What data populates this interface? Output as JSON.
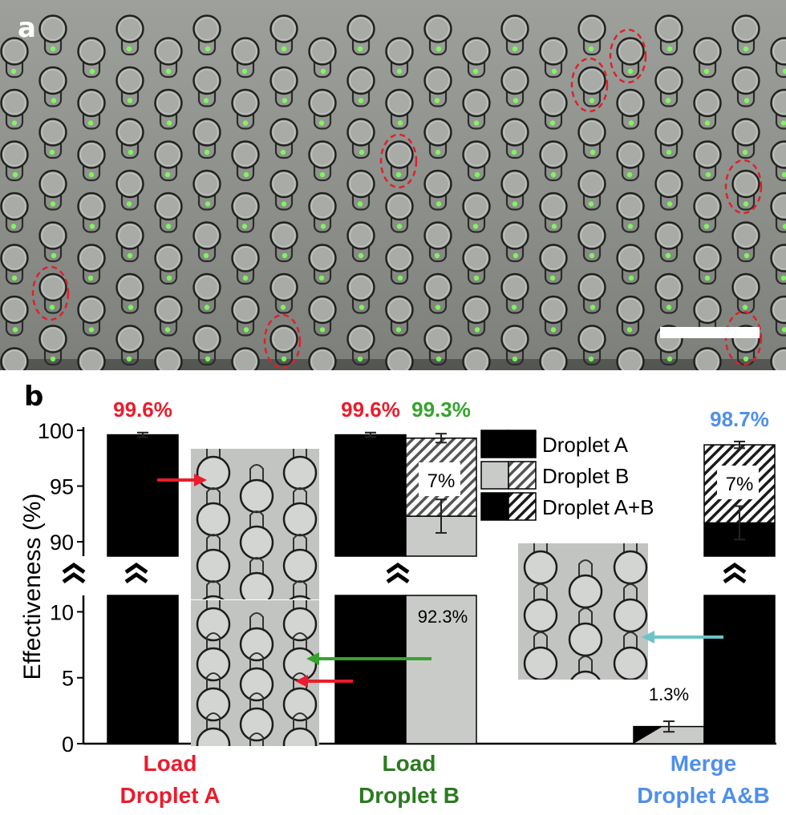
{
  "panel_a": {
    "label": "a",
    "description_colors": {
      "background": "#8f918e",
      "droplet_green": "#7dff5a",
      "highlight": "#e0202a"
    }
  },
  "panel_b": {
    "label": "b"
  },
  "chart_data": {
    "type": "bar",
    "ylabel": "Effectiveness  (%)",
    "y_axis_broken": true,
    "ylim_lower": [
      0,
      11
    ],
    "ylim_upper": [
      89,
      100
    ],
    "yticks_lower": [
      "0",
      "5",
      "10"
    ],
    "yticks_upper": [
      "90",
      "95",
      "100"
    ],
    "groups": [
      {
        "label_line1": "Load",
        "label_line2": "Droplet A",
        "label_color": "#ea1c2d"
      },
      {
        "label_line1": "Load",
        "label_line2": "Droplet B",
        "label_color": "#2b7a1f"
      },
      {
        "label_line1": "Merge",
        "label_line2": "Droplet A&B",
        "label_color": "#4f8fea"
      }
    ],
    "bars": [
      {
        "group": 0,
        "value": 99.6,
        "label": "99.6%",
        "label_color": "#ea1c2d",
        "pattern": "black",
        "error": 0.2
      },
      {
        "group": 1,
        "value": 99.6,
        "label": "99.6%",
        "label_color": "#ea1c2d",
        "pattern": "black",
        "error": 0.2
      },
      {
        "group": 1,
        "value": 99.3,
        "label": "99.3%",
        "label_color": "#36a32e",
        "pattern": "light-hatched",
        "error": 0.4,
        "segments": [
          {
            "value": 92.3,
            "label": "92.3%",
            "pattern": "light",
            "error": 1.5
          },
          {
            "value": 7.0,
            "label": "7%",
            "pattern": "light-hatched"
          }
        ]
      },
      {
        "group": 2,
        "value": 1.3,
        "label": "1.3%",
        "label_color": "#000000",
        "pattern": "light-hatched",
        "error": 0.4
      },
      {
        "group": 2,
        "value": 98.7,
        "label": "98.7%",
        "label_color": "#4f8fea",
        "pattern": "dark-hatched",
        "error": 0.3,
        "segments": [
          {
            "value": 91.7,
            "pattern": "black",
            "error": 1.5
          },
          {
            "value": 7.0,
            "label": "7%",
            "pattern": "dark-hatched"
          }
        ]
      }
    ],
    "legend": {
      "placement": "top-right",
      "entries": [
        {
          "label": "Droplet A",
          "pattern": "black"
        },
        {
          "label": "Droplet B",
          "pattern": "light"
        },
        {
          "label": "Droplet A+B",
          "pattern": "black"
        }
      ]
    },
    "arrows": [
      {
        "color": "#ea1c2d",
        "name": "red"
      },
      {
        "color": "#36a32e",
        "name": "green"
      },
      {
        "color": "#6cc3c9",
        "name": "cyan"
      }
    ]
  }
}
